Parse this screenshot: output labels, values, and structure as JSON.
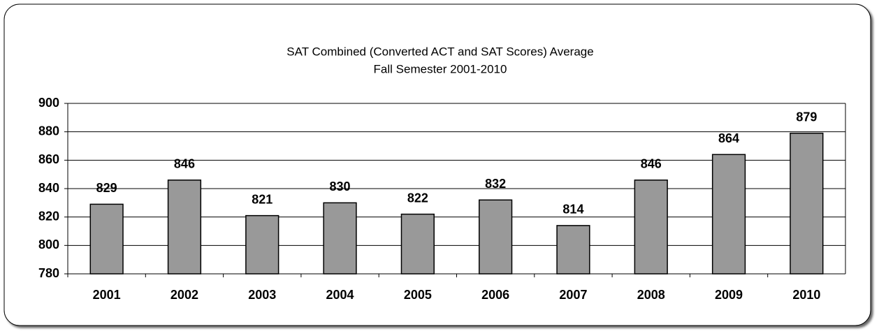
{
  "chart_data": {
    "type": "bar",
    "title": "SAT Combined (Converted ACT and SAT Scores) Average",
    "subtitle": "Fall Semester 2001-2010",
    "categories": [
      "2001",
      "2002",
      "2003",
      "2004",
      "2005",
      "2006",
      "2007",
      "2008",
      "2009",
      "2010"
    ],
    "values": [
      829,
      846,
      821,
      830,
      822,
      832,
      814,
      846,
      864,
      879
    ],
    "color": "#999999",
    "ylim": [
      780,
      900
    ],
    "yticks": [
      780,
      800,
      820,
      840,
      860,
      880,
      900
    ],
    "grid": true
  }
}
